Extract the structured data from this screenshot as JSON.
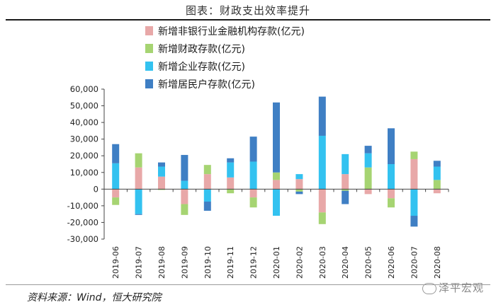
{
  "figure": {
    "title": "图表：财政支出效率提升",
    "source": "资料来源：Wind，恒大研究院",
    "watermark": "泽平宏观"
  },
  "colors": {
    "nonbank": "#e8a8a8",
    "fiscal": "#a6d472",
    "enterprise": "#33c2f0",
    "resident": "#3f7fc4",
    "axis": "#444444"
  },
  "chart_data": {
    "type": "bar",
    "stacked": true,
    "categories": [
      "2019-06",
      "2019-07",
      "2019-08",
      "2019-09",
      "2019-10",
      "2019-11",
      "2019-12",
      "2020-01",
      "2020-02",
      "2020-03",
      "2020-04",
      "2020-05",
      "2020-06",
      "2020-07",
      "2020-08"
    ],
    "ylim": [
      -30000,
      60000
    ],
    "yticks": [
      -30000,
      -20000,
      -10000,
      0,
      10000,
      20000,
      30000,
      40000,
      50000,
      60000
    ],
    "ytick_labels": [
      "-30,000",
      "-20,000",
      "-10,000",
      "0",
      "10,000",
      "20,000",
      "30,000",
      "40,000",
      "50,000",
      "60,000"
    ],
    "legend_position": "top-center",
    "series": [
      {
        "name": "新增非银行业金融机构存款(亿元)",
        "key": "nonbank",
        "values": [
          -5000,
          13000,
          7500,
          -9000,
          9000,
          7000,
          -5000,
          5500,
          6000,
          -14000,
          9000,
          -3000,
          -5500,
          18000,
          -2500
        ]
      },
      {
        "name": "新增财政存款(亿元)",
        "key": "fiscal",
        "values": [
          -4500,
          8500,
          -500,
          -6500,
          5500,
          -2500,
          -6000,
          4500,
          -1500,
          -7000,
          -1000,
          13000,
          -5500,
          4500,
          5500
        ]
      },
      {
        "name": "新增企业存款(亿元)",
        "key": "enterprise",
        "values": [
          15500,
          -15000,
          6000,
          5000,
          -7500,
          9000,
          16500,
          -16000,
          3000,
          32000,
          12000,
          8500,
          15000,
          -16000,
          8000
        ]
      },
      {
        "name": "新增居民户存款(亿元)",
        "key": "resident",
        "values": [
          11500,
          -500,
          2500,
          15500,
          -5500,
          2500,
          15000,
          42000,
          -1500,
          23500,
          -8000,
          4500,
          21500,
          -6500,
          3500
        ]
      }
    ]
  }
}
